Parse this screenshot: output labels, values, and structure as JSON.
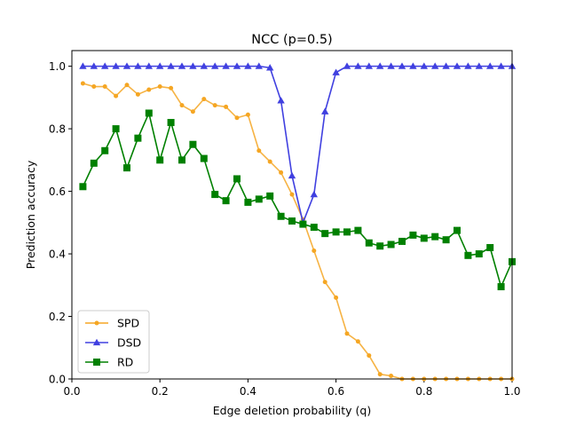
{
  "chart_data": {
    "type": "line",
    "title": "NCC (p=0.5)",
    "xlabel": "Edge deletion probability (q)",
    "ylabel": "Prediction accuracy",
    "xlim": [
      0,
      1
    ],
    "ylim": [
      0,
      1.05
    ],
    "xticks": [
      "0.0",
      "0.2",
      "0.4",
      "0.6",
      "0.8",
      "1.0"
    ],
    "yticks": [
      "0.0",
      "0.2",
      "0.4",
      "0.6",
      "0.8",
      "1.0"
    ],
    "grid": false,
    "legend_position": "lower-left",
    "x": [
      0.025,
      0.05,
      0.075,
      0.1,
      0.125,
      0.15,
      0.175,
      0.2,
      0.225,
      0.25,
      0.275,
      0.3,
      0.325,
      0.35,
      0.375,
      0.4,
      0.425,
      0.45,
      0.475,
      0.5,
      0.525,
      0.55,
      0.575,
      0.6,
      0.625,
      0.65,
      0.675,
      0.7,
      0.725,
      0.75,
      0.775,
      0.8,
      0.825,
      0.85,
      0.875,
      0.9,
      0.925,
      0.95,
      0.975,
      1.0
    ],
    "series": [
      {
        "name": "SPD",
        "color": "#f5a623",
        "marker": "circle",
        "values": [
          0.945,
          0.935,
          0.935,
          0.905,
          0.94,
          0.91,
          0.925,
          0.935,
          0.93,
          0.875,
          0.855,
          0.895,
          0.875,
          0.87,
          0.835,
          0.845,
          0.73,
          0.695,
          0.66,
          0.59,
          0.51,
          0.41,
          0.31,
          0.26,
          0.145,
          0.12,
          0.075,
          0.015,
          0.01,
          0.0,
          0.0,
          0.0,
          0.0,
          0.0,
          0.0,
          0.0,
          0.0,
          0.0,
          0.0,
          0.0
        ]
      },
      {
        "name": "DSD",
        "color": "#4040e0",
        "marker": "triangle",
        "values": [
          1.0,
          1.0,
          1.0,
          1.0,
          1.0,
          1.0,
          1.0,
          1.0,
          1.0,
          1.0,
          1.0,
          1.0,
          1.0,
          1.0,
          1.0,
          1.0,
          1.0,
          0.995,
          0.89,
          0.65,
          0.5,
          0.59,
          0.855,
          0.98,
          1.0,
          1.0,
          1.0,
          1.0,
          1.0,
          1.0,
          1.0,
          1.0,
          1.0,
          1.0,
          1.0,
          1.0,
          1.0,
          1.0,
          1.0,
          1.0
        ]
      },
      {
        "name": "RD",
        "color": "#008000",
        "marker": "square",
        "values": [
          0.615,
          0.69,
          0.73,
          0.8,
          0.675,
          0.77,
          0.85,
          0.7,
          0.82,
          0.7,
          0.75,
          0.705,
          0.59,
          0.57,
          0.64,
          0.565,
          0.575,
          0.585,
          0.52,
          0.505,
          0.495,
          0.485,
          0.465,
          0.47,
          0.47,
          0.475,
          0.435,
          0.425,
          0.43,
          0.44,
          0.46,
          0.45,
          0.455,
          0.445,
          0.475,
          0.395,
          0.4,
          0.42,
          0.295,
          0.375
        ]
      }
    ]
  }
}
